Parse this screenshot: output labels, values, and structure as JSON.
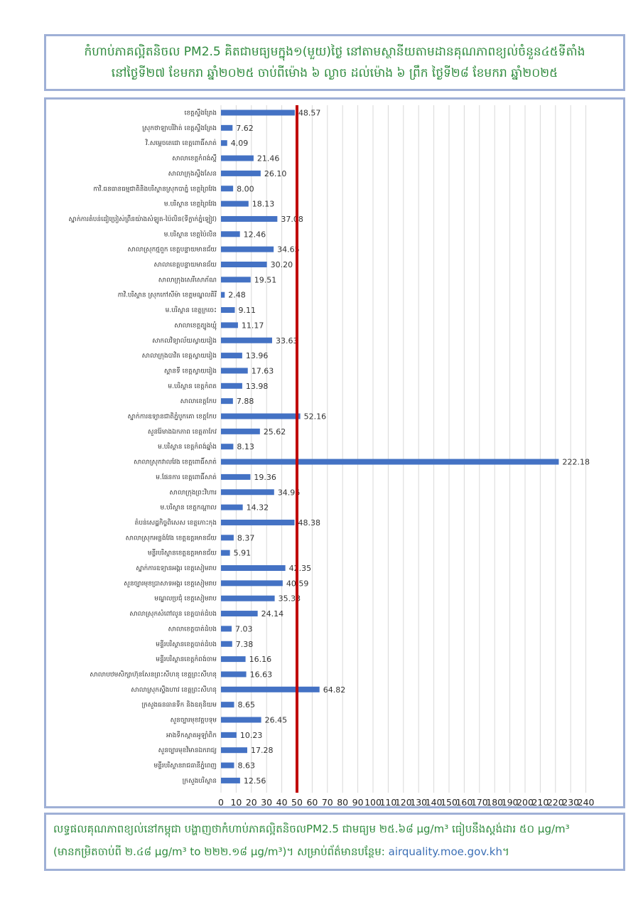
{
  "title": {
    "line1": "កំហាប់ភាគល្អិតនិចល PM2.5 គិតជាមធ្យមក្នុង១(មួយ)ថ្ងៃ នៅតាមស្ថានីយតាមដានគុណភាពខ្យល់ចំនួន៤៥ទីតាំង",
    "line2": "នៅថ្ងៃទី២៧ ខែមករា ឆ្នាំ២០២៥ ចាប់ពីម៉ោង ៦ ល្ងាច ដល់ម៉ោង ៦ ព្រឹក ថ្ងៃទី២៨ ខែមករា ឆ្នាំ២០២៥"
  },
  "footer": {
    "line1": "លទ្ធផលគុណភាពខ្យល់នៅកម្ពុជា បង្ហាញថាកំហាប់ភាគល្អិតនិចលPM2.5 ជាមធ្យម ២៥.៦៨ μg/m³ ធៀបនឹងស្តង់ដារ ៥០ μg/m³",
    "line2_prefix": "(មានកម្រិតចាប់ពី ២.៤៨ μg/m³ to ២២២.១៨ μg/m³)។ សម្រាប់ព័ត៌មានបន្ថែម: ",
    "link": "airquality.moe.gov.kh",
    "line2_suffix": "។"
  },
  "chart_data": {
    "type": "bar",
    "orientation": "horizontal",
    "categories": [
      "ខេត្តស្ទឹងត្រែង",
      "ស្រុកថាឡាបរិវ៉ាត់ ខេត្តស្ទឹងត្រែង",
      "វិ.សម្តេចតេជោ ខេត្តពោធិ៍សាត់",
      "សាលាខេត្តកំពង់ស្ពឺ",
      "សាលាក្រុងស្ទឹងសែន",
      "កាវិ.ធនធានធម្មជាតិនិងបរិស្ថានស្រុកបាភ្នំ ខេត្តព្រៃវែង",
      "ម.បរិស្ថាន ខេត្តព្រៃវែង",
      "ស្នាក់ការតំបន់ដៀប្រៀស់ព្រឹនយ៉ាងសំឡូត-ប៉ៃលិន(ទីក្លាក់ភ្នំឡៀវ)",
      "ម.បរិស្ថាន ខេត្តប៉ៃលិន",
      "សាលាស្រុកថ្មពួក ខេត្តបន្ទាយមានជ័យ",
      "សាលាខេត្តបន្ទាយមានជ័យ",
      "សាលាក្រុងសេរីសោភ័ណ",
      "កាវិ.បរិស្ថាន ស្រុកកៅសីម៉ា ខេត្តមណ្ឌលគិរី",
      "ម.បរិស្ថាន ខេត្តក្រចេះ",
      "សាលាខេត្តត្បូងឃ្មុំ",
      "សាកលវិទ្យាល័យស្វាយរៀង",
      "សាលាក្រុងបាវិត ខេត្តស្វាយរៀង",
      "ស្ពានទី ខេត្តស្វាយរៀង",
      "ម.បរិស្ថាន ខេត្តកំពត",
      "សាលាខេត្តកែប",
      "ស្នាក់ការឧទ្យានជាតិភ្នំបូកគោ ខេត្តកែប",
      "សួនរ៉ែមាងឯកភាព ខេត្តតាកែវ",
      "ម.បរិស្ថាន ខេត្តកំពង់ឆ្នាំង",
      "សាលាស្រុកវាលវែង ខេត្តពោធិ៍សាត់",
      "ម.ផែនការ ខេត្តពោធិ៍សាត់",
      "សាលាក្រុងព្រះវិហារ",
      "ម.បរិស្ថាន ខេត្តកណ្តាល",
      "តំបន់សេដ្ឋកិច្ចពិសេស ខេត្តកោះកុង",
      "សាលាស្រុកអន្លង់វែង ខេត្តឧត្តរមានជ័យ",
      "មន្ទីរបរិស្ថានខេត្តឧត្តរមានជ័យ",
      "ស្នាក់ការឧទ្យានអង្គរ ខេត្តសៀមរាប",
      "សួនច្បារមុខប្រាសាទអង្គរ ខេត្តសៀមរាប",
      "មណ្ឌលប្រជុំ ខេត្តសៀមរាប",
      "សាលាស្រុកសំពៅលូន ខេត្តបាត់ដំបង",
      "សាលាខេត្តបាត់ដំបង",
      "មន្ទីរបរិស្ថានខេត្តបាត់ដំបង",
      "មន្ទីរបរិស្ថានខេត្តកំពង់ចាម",
      "សាលាបឋមសិក្សាហ៊ុនសែនព្រះសីហនុ ខេត្តព្រះសីហនុ",
      "សាលាស្រុកស្ទឹងហាវ ខេត្តព្រះសីហនុ",
      "ក្រសួងធនធានទឹក និងឧតុនិយម",
      "សួនច្បារមុខវត្តបទុម",
      "អាងទឹកស្តាតអូឡាំពិក",
      "សួនច្បារមុខវិមានឯករាជ្យ",
      "មន្ទីរបរិស្ថានរាជធានីភ្នំពេញ",
      "ក្រសួងបរិស្ថាន"
    ],
    "values": [
      48.57,
      7.62,
      4.09,
      21.46,
      26.1,
      8.0,
      18.13,
      37.08,
      12.46,
      34.65,
      30.2,
      19.51,
      2.48,
      9.11,
      11.17,
      33.63,
      13.96,
      17.63,
      13.98,
      7.88,
      52.16,
      25.62,
      8.13,
      222.18,
      19.36,
      34.96,
      14.32,
      48.38,
      8.37,
      5.91,
      42.35,
      40.59,
      35.33,
      24.14,
      7.03,
      7.38,
      16.16,
      16.63,
      64.82,
      8.65,
      26.45,
      10.23,
      17.28,
      8.63,
      12.56
    ],
    "value_labels": [
      "48.57",
      "7.62",
      "4.09",
      "21.46",
      "26.10",
      "8.00",
      "18.13",
      "37.08",
      "12.46",
      "34.65",
      "30.20",
      "19.51",
      "2.48",
      "9.11",
      "11.17",
      "33.63",
      "13.96",
      "17.63",
      "13.98",
      "7.88",
      "52.16",
      "25.62",
      "8.13",
      "222.18",
      "19.36",
      "34.96",
      "14.32",
      "48.38",
      "8.37",
      "5.91",
      "42.35",
      "40.59",
      "35.33",
      "24.14",
      "7.03",
      "7.38",
      "16.16",
      "16.63",
      "64.82",
      "8.65",
      "26.45",
      "10.23",
      "17.28",
      "8.63",
      "12.56"
    ],
    "xlim": [
      0,
      240
    ],
    "x_ticks": [
      0,
      10,
      20,
      30,
      40,
      50,
      60,
      70,
      80,
      90,
      100,
      110,
      120,
      130,
      140,
      150,
      160,
      170,
      180,
      190,
      200,
      210,
      220,
      230,
      240
    ],
    "reference_line": {
      "value": 50,
      "color": "#c00000"
    },
    "bar_color": "#4472c4",
    "grid": true,
    "xlabel": "",
    "ylabel": ""
  }
}
